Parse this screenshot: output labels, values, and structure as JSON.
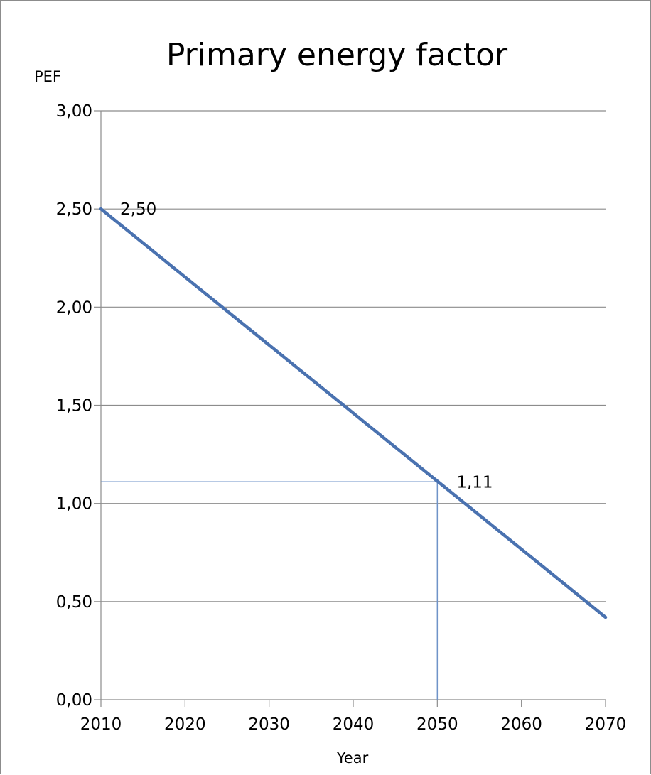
{
  "chart_data": {
    "type": "line",
    "title": "Primary energy factor",
    "xlabel": "Year",
    "ylabel": "PEF",
    "xlim": [
      2010,
      2070
    ],
    "ylim": [
      0,
      3
    ],
    "x_ticks": [
      2010,
      2020,
      2030,
      2040,
      2050,
      2060,
      2070
    ],
    "y_ticks": [
      0,
      0.5,
      1,
      1.5,
      2,
      2.5,
      3
    ],
    "x_tick_labels": [
      "2010",
      "2020",
      "2030",
      "2040",
      "2050",
      "2060",
      "2070"
    ],
    "y_tick_labels": [
      "0,00",
      "0,50",
      "1,00",
      "1,50",
      "2,00",
      "2,50",
      "3,00"
    ],
    "grid": "horizontal",
    "series": [
      {
        "x": [
          2010,
          2070
        ],
        "y": [
          2.5,
          0.42
        ],
        "color": "#4a72b0"
      }
    ],
    "annotations": [
      {
        "text": "2,50",
        "x": 2010,
        "y": 2.5
      },
      {
        "text": "1,11",
        "x": 2050,
        "y": 1.11
      }
    ],
    "reference_point": {
      "x": 2050,
      "y": 1.11,
      "color": "#6f93c8"
    },
    "colors": {
      "grid": "#8c8c8c",
      "axis": "#8c8c8c",
      "frame": "#8c8c8c"
    }
  }
}
